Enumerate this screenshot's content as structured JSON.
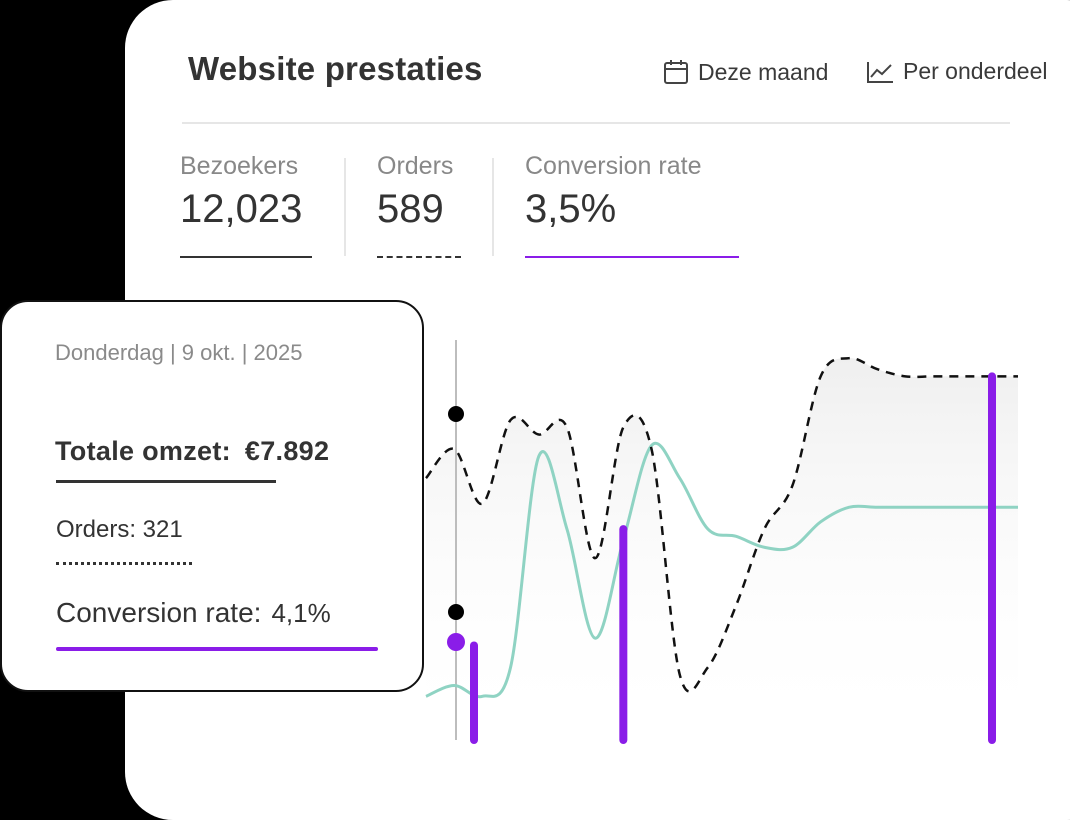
{
  "header": {
    "title": "Website prestaties",
    "period_label": "Deze maand",
    "breakdown_label": "Per onderdeel"
  },
  "stats": {
    "visitors": {
      "label": "Bezoekers",
      "value": "12,023"
    },
    "orders": {
      "label": "Orders",
      "value": "589"
    },
    "conversion": {
      "label": "Conversion rate",
      "value": "3,5%"
    }
  },
  "tooltip": {
    "date": "Donderdag | 9 okt. | 2025",
    "revenue_label": "Totale omzet:",
    "revenue_value": "€7.892",
    "orders_text": "Orders: 321",
    "conversion_label": "Conversion rate:",
    "conversion_value": "4,1%"
  },
  "colors": {
    "accent_purple": "#8a1de8",
    "teal_line": "#8fd3c3",
    "dashed_line": "#111111",
    "fill_area": "#f5f5f5",
    "text_dark": "#333333",
    "text_muted": "#888888"
  },
  "chart_data": {
    "type": "line",
    "x": [
      0,
      1,
      2,
      3,
      4,
      5,
      6,
      7,
      8,
      9,
      10,
      11,
      12,
      13,
      14,
      15,
      16,
      17,
      18,
      19,
      20,
      21
    ],
    "series": [
      {
        "values": [
          0.72,
          0.8,
          0.65,
          0.88,
          0.84,
          0.86,
          0.5,
          0.86,
          0.8,
          0.18,
          0.2,
          0.37,
          0.58,
          0.7,
          1.0,
          1.05,
          1.02,
          1.0,
          1.0,
          1.0,
          1.0,
          1.0
        ]
      },
      {
        "values": [
          0.12,
          0.15,
          0.12,
          0.2,
          0.78,
          0.58,
          0.28,
          0.55,
          0.81,
          0.72,
          0.58,
          0.56,
          0.53,
          0.53,
          0.6,
          0.64,
          0.64,
          0.64,
          0.64,
          0.64,
          0.64,
          0.64
        ]
      },
      {
        "values": [
          0.26,
          0.0,
          0.0,
          0.0,
          0.0,
          0.0,
          0.0,
          0.58,
          0.0,
          0.0,
          0.0,
          0.0,
          0.0,
          0.0,
          0.0,
          0.0,
          0.0,
          0.0,
          0.0,
          0.0,
          0.0,
          1.0
        ]
      }
    ],
    "marker_index": 0,
    "ylim": [
      0,
      1.1
    ]
  }
}
